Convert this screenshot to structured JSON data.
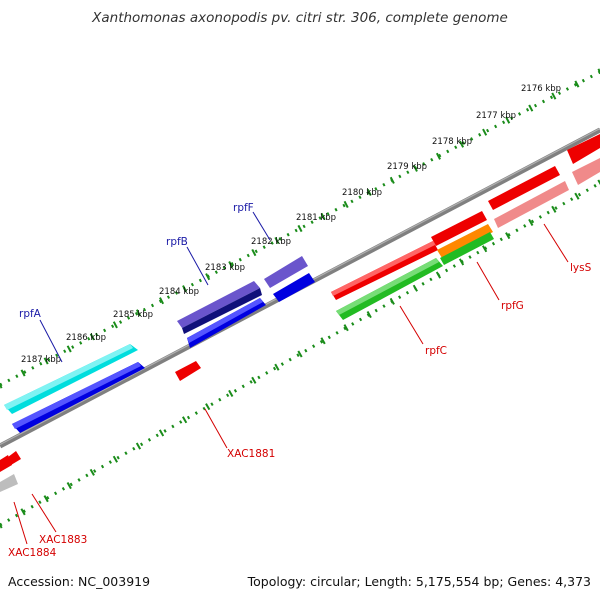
{
  "title": "Xanthomonas axonopodis pv. citri str. 306, complete genome",
  "footer": {
    "accession": "Accession: NC_003919",
    "summary": "Topology: circular; Length: 5,175,554 bp; Genes: 4,373"
  },
  "colors": {
    "backbone": "#808080",
    "ticks": "#1a8c1a",
    "plus_label": "#1a1aa6",
    "minus_label": "#d40000"
  },
  "kbp_labels": [
    "2176 kbp",
    "2177 kbp",
    "2178 kbp",
    "2179 kbp",
    "2180 kbp",
    "2181 kbp",
    "2182 kbp",
    "2183 kbp",
    "2184 kbp",
    "2185 kbp",
    "2186 kbp",
    "2187 kbp"
  ],
  "gene_labels": {
    "rpfA": "rpfA",
    "rpfB": "rpfB",
    "rpfF": "rpfF",
    "rpfC": "rpfC",
    "rpfG": "rpfG",
    "lysS": "lysS",
    "XAC1881": "XAC1881",
    "XAC1883": "XAC1883",
    "XAC1884": "XAC1884"
  }
}
